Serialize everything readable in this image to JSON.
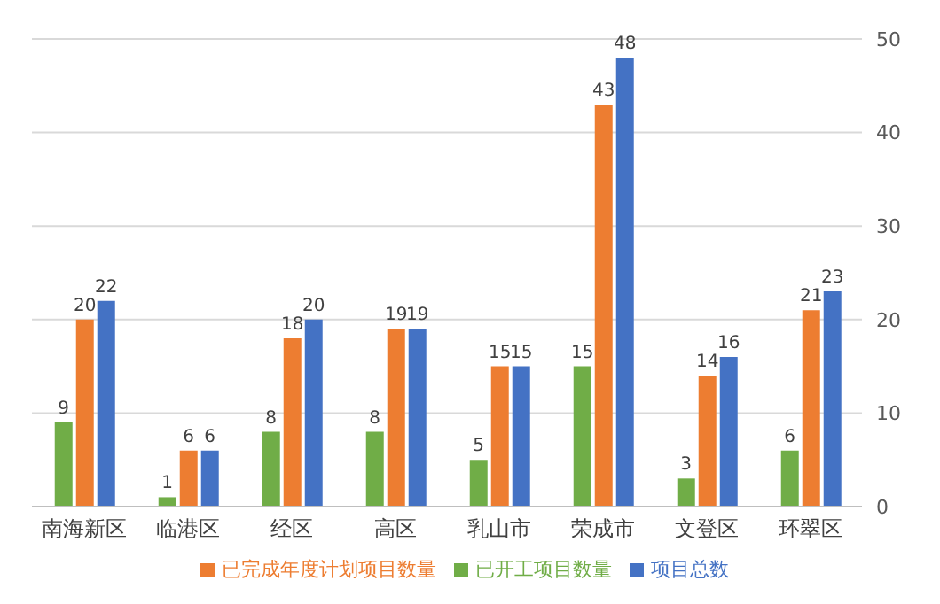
{
  "chart_data": {
    "type": "bar",
    "categories": [
      "南海新区",
      "临港区",
      "经区",
      "高区",
      "乳山市",
      "荣成市",
      "文登区",
      "环翠区"
    ],
    "series": [
      {
        "name": "已开工项目数量",
        "color": "#70ad47",
        "values": [
          9,
          1,
          8,
          8,
          5,
          15,
          3,
          6
        ]
      },
      {
        "name": "已完成年度计划项目数量",
        "color": "#ed7d31",
        "values": [
          20,
          6,
          18,
          19,
          15,
          43,
          14,
          21
        ]
      },
      {
        "name": "项目总数",
        "color": "#4472c4",
        "values": [
          22,
          6,
          20,
          19,
          15,
          48,
          16,
          23
        ]
      }
    ],
    "ylim": [
      0,
      50
    ],
    "yticks": [
      0,
      10,
      20,
      30,
      40,
      50
    ],
    "grid": "y",
    "legend": "bottom",
    "data_labels": true
  }
}
